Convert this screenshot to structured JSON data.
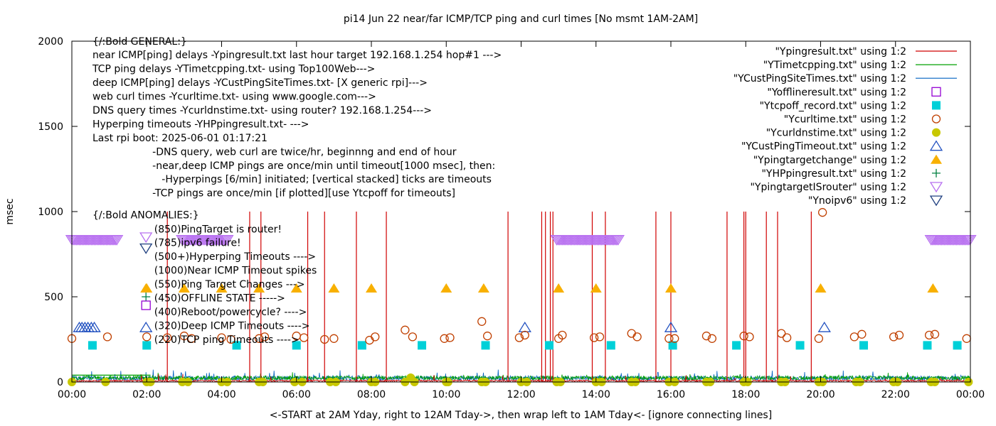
{
  "chart_data": {
    "type": "line",
    "title": "pi14 Jun 22  near/far ICMP/TCP ping and curl times [No msmt 1AM-2AM]",
    "xlabel": "<-START at 2AM Yday, right to 12AM Tday->, then wrap left to 1AM Tday<- [ignore connecting lines]",
    "ylabel": "msec",
    "xlim": [
      0,
      24
    ],
    "ylim": [
      0,
      2000
    ],
    "x_ticks": [
      "00:00",
      "02:00",
      "04:00",
      "06:00",
      "08:00",
      "10:00",
      "12:00",
      "14:00",
      "16:00",
      "18:00",
      "20:00",
      "22:00",
      "00:00"
    ],
    "y_ticks": [
      "0",
      "500",
      "1000",
      "1500",
      "2000"
    ],
    "grid": false,
    "legend_position": "top-right",
    "colors": {
      "ping": "#d00000",
      "tcp": "#00a000",
      "deep": "#0060c0",
      "offline": "#9400d3",
      "tcpoff": "#00d0d8",
      "curl": "#c04000",
      "dns": "#c8c800",
      "custto": "#2050c0",
      "target": "#f8b000",
      "hpping": "#008040",
      "isrouter": "#b870f0",
      "noipv6": "#204080"
    },
    "legend": [
      {
        "label": "\"Ypingresult.txt\" using 1:2",
        "kind": "line",
        "color": "#d00000"
      },
      {
        "label": "\"YTimetcpping.txt\" using 1:2",
        "kind": "line",
        "color": "#00a000"
      },
      {
        "label": "\"YCustPingSiteTimes.txt\" using 1:2",
        "kind": "line",
        "color": "#0060c0"
      },
      {
        "label": "\"Yofflineresult.txt\" using 1:2",
        "kind": "sq-open",
        "color": "#9400d3"
      },
      {
        "label": "\"Ytcpoff_record.txt\" using 1:2",
        "kind": "sq-fill",
        "color": "#00d0d8"
      },
      {
        "label": "\"Ycurltime.txt\" using 1:2",
        "kind": "circ-open",
        "color": "#c04000"
      },
      {
        "label": "\"Ycurldnstime.txt\" using 1:2",
        "kind": "circ-fill",
        "color": "#c8c800"
      },
      {
        "label": "\"YCustPingTimeout.txt\" using 1:2",
        "kind": "tri-open",
        "color": "#2050c0"
      },
      {
        "label": "\"Ypingtargetchange\" using 1:2",
        "kind": "tri-fill",
        "color": "#f8b000"
      },
      {
        "label": "\"YHPpingresult.txt\" using 1:2",
        "kind": "plus",
        "color": "#008040"
      },
      {
        "label": "\"YpingtargetISrouter\" using 1:2",
        "kind": "inv-open",
        "color": "#b870f0"
      },
      {
        "label": "\"Ynoipv6\" using 1:2",
        "kind": "inv-open",
        "color": "#204080"
      }
    ],
    "annotations": [
      {
        "text": "{/:Bold GENERAL:}",
        "x": 0.55,
        "y": 1980
      },
      {
        "text": "near ICMP[ping] delays -Ypingresult.txt last hour target 192.168.1.254 hop#1 --->",
        "x": 0.55,
        "y": 1899
      },
      {
        "text": "TCP ping delays -YTimetcpping.txt- using Top100Web--->",
        "x": 0.55,
        "y": 1818
      },
      {
        "text": "deep ICMP[ping] delays -YCustPingSiteTimes.txt- [X generic rpi]--->",
        "x": 0.55,
        "y": 1737
      },
      {
        "text": "web curl times -Ycurltime.txt- using www.google.com--->",
        "x": 0.55,
        "y": 1656
      },
      {
        "text": "DNS query times -Ycurldnstime.txt- using router? 192.168.1.254--->",
        "x": 0.55,
        "y": 1575
      },
      {
        "text": "Hyperping timeouts -YHPpingresult.txt- --->",
        "x": 0.55,
        "y": 1494
      },
      {
        "text": "Last rpi boot: 2025-06-01 01:17:21",
        "x": 0.55,
        "y": 1413
      },
      {
        "text": "-DNS query, web curl are twice/hr, beginnng and end of hour",
        "x": 2.15,
        "y": 1332
      },
      {
        "text": "-near,deep ICMP pings are once/min until timeout[1000 msec], then:",
        "x": 2.15,
        "y": 1251
      },
      {
        "text": "-Hyperpings [6/min] initiated; [vertical stacked] ticks are timeouts",
        "x": 2.4,
        "y": 1170
      },
      {
        "text": "-TCP pings are once/min [if plotted][use Ytcpoff for timeouts]",
        "x": 2.15,
        "y": 1089
      },
      {
        "text": "{/:Bold ANOMALIES:}",
        "x": 0.55,
        "y": 960
      },
      {
        "text": "(850)PingTarget is router!",
        "x": 2.2,
        "y": 878
      },
      {
        "text": "(785)ipv6 failure!",
        "x": 2.2,
        "y": 797
      },
      {
        "text": "(500+)Hyperping Timeouts ---->",
        "x": 2.2,
        "y": 716
      },
      {
        "text": "(1000)Near ICMP Timeout spikes",
        "x": 2.2,
        "y": 635
      },
      {
        "text": "(550)Ping Target Changes --->",
        "x": 2.2,
        "y": 554
      },
      {
        "text": "(450)OFFLINE STATE ----->",
        "x": 2.2,
        "y": 473
      },
      {
        "text": "(400)Reboot/powercycle? ---->",
        "x": 2.2,
        "y": 392
      },
      {
        "text": "(320)Deep ICMP Timeouts ---->",
        "x": 2.2,
        "y": 311
      },
      {
        "text": "(220)TCP ping Timeouts ---->",
        "x": 2.2,
        "y": 230
      }
    ],
    "anomaly_markers": [
      {
        "y": 850,
        "kind": "inv-open",
        "color": "#b870f0"
      },
      {
        "y": 785,
        "kind": "inv-open",
        "color": "#204080"
      },
      {
        "y": 500,
        "kind": "plus",
        "color": "#008040"
      },
      {
        "y": 550,
        "kind": "tri-fill",
        "color": "#f8b000"
      },
      {
        "y": 450,
        "kind": "sq-open",
        "color": "#9400d3"
      },
      {
        "y": 320,
        "kind": "tri-open",
        "color": "#2050c0"
      }
    ],
    "series": {
      "ping_spikes_x": [
        2.55,
        4.75,
        5.05,
        6.3,
        6.75,
        7.6,
        8.4,
        11.65,
        12.55,
        12.65,
        12.78,
        12.85,
        13.9,
        14.25,
        15.6,
        16.0,
        17.5,
        17.95,
        18.0,
        18.55,
        18.85,
        19.75
      ],
      "ping_spike_y": 1000,
      "isrouter_ranges": [
        [
          0.0,
          1.2
        ],
        [
          2.95,
          4.15
        ],
        [
          12.95,
          14.6
        ],
        [
          22.95,
          24.0
        ]
      ],
      "isrouter_y": 835,
      "target_change_x": [
        2.0,
        3.0,
        4.0,
        5.0,
        6.0,
        7.0,
        8.0,
        10.0,
        11.0,
        13.0,
        14.0,
        16.0,
        20.0,
        23.0
      ],
      "target_change_y": 550,
      "tcpoff_x": [
        0.55,
        2.0,
        4.4,
        6.0,
        7.75,
        9.35,
        11.05,
        12.75,
        14.4,
        16.05,
        17.75,
        19.45,
        21.15,
        22.85,
        23.65
      ],
      "tcpoff_y": 215,
      "custto_x": [
        0.2,
        0.27,
        0.35,
        0.43,
        0.52,
        0.6,
        12.1,
        16.0,
        20.1
      ],
      "custto_y": 320,
      "curl_points": [
        [
          0.0,
          255
        ],
        [
          0.95,
          265
        ],
        [
          2.0,
          265
        ],
        [
          2.55,
          260
        ],
        [
          3.0,
          270
        ],
        [
          3.2,
          255
        ],
        [
          4.0,
          260
        ],
        [
          4.25,
          250
        ],
        [
          5.0,
          255
        ],
        [
          5.15,
          265
        ],
        [
          6.0,
          270
        ],
        [
          6.2,
          260
        ],
        [
          6.75,
          250
        ],
        [
          7.0,
          255
        ],
        [
          7.95,
          245
        ],
        [
          8.1,
          265
        ],
        [
          8.9,
          305
        ],
        [
          9.1,
          265
        ],
        [
          9.95,
          255
        ],
        [
          10.1,
          260
        ],
        [
          10.95,
          355
        ],
        [
          11.1,
          270
        ],
        [
          11.95,
          260
        ],
        [
          12.1,
          275
        ],
        [
          13.0,
          255
        ],
        [
          13.1,
          275
        ],
        [
          13.95,
          260
        ],
        [
          14.1,
          265
        ],
        [
          14.95,
          285
        ],
        [
          15.1,
          265
        ],
        [
          15.95,
          255
        ],
        [
          16.1,
          255
        ],
        [
          16.95,
          270
        ],
        [
          17.1,
          255
        ],
        [
          17.95,
          270
        ],
        [
          18.1,
          265
        ],
        [
          18.95,
          285
        ],
        [
          19.1,
          260
        ],
        [
          19.95,
          255
        ],
        [
          20.05,
          995
        ],
        [
          20.9,
          265
        ],
        [
          21.1,
          280
        ],
        [
          21.95,
          265
        ],
        [
          22.1,
          275
        ],
        [
          22.9,
          275
        ],
        [
          23.05,
          280
        ],
        [
          23.9,
          255
        ]
      ],
      "dns_points": [
        [
          0.0,
          0
        ],
        [
          0.9,
          0
        ],
        [
          2.0,
          0
        ],
        [
          2.1,
          0
        ],
        [
          2.95,
          0
        ],
        [
          3.1,
          0
        ],
        [
          4.0,
          0
        ],
        [
          4.15,
          0
        ],
        [
          5.0,
          0
        ],
        [
          5.1,
          0
        ],
        [
          5.95,
          0
        ],
        [
          6.15,
          0
        ],
        [
          6.9,
          0
        ],
        [
          7.05,
          0
        ],
        [
          8.0,
          0
        ],
        [
          8.1,
          0
        ],
        [
          8.9,
          0
        ],
        [
          9.05,
          25
        ],
        [
          9.15,
          0
        ],
        [
          10.0,
          0
        ],
        [
          10.05,
          0
        ],
        [
          10.95,
          0
        ],
        [
          11.05,
          0
        ],
        [
          12.0,
          0
        ],
        [
          12.15,
          0
        ],
        [
          12.95,
          0
        ],
        [
          13.05,
          0
        ],
        [
          14.0,
          0
        ],
        [
          14.15,
          0
        ],
        [
          14.95,
          0
        ],
        [
          15.05,
          0
        ],
        [
          15.95,
          0
        ],
        [
          16.1,
          0
        ],
        [
          16.95,
          0
        ],
        [
          17.05,
          0
        ],
        [
          17.95,
          0
        ],
        [
          18.05,
          0
        ],
        [
          18.95,
          0
        ],
        [
          19.05,
          0
        ],
        [
          19.95,
          0
        ],
        [
          20.05,
          0
        ],
        [
          20.95,
          0
        ],
        [
          21.05,
          0
        ],
        [
          21.95,
          0
        ],
        [
          22.05,
          0
        ],
        [
          22.95,
          0
        ],
        [
          23.05,
          0
        ],
        [
          23.95,
          0
        ]
      ]
    }
  }
}
